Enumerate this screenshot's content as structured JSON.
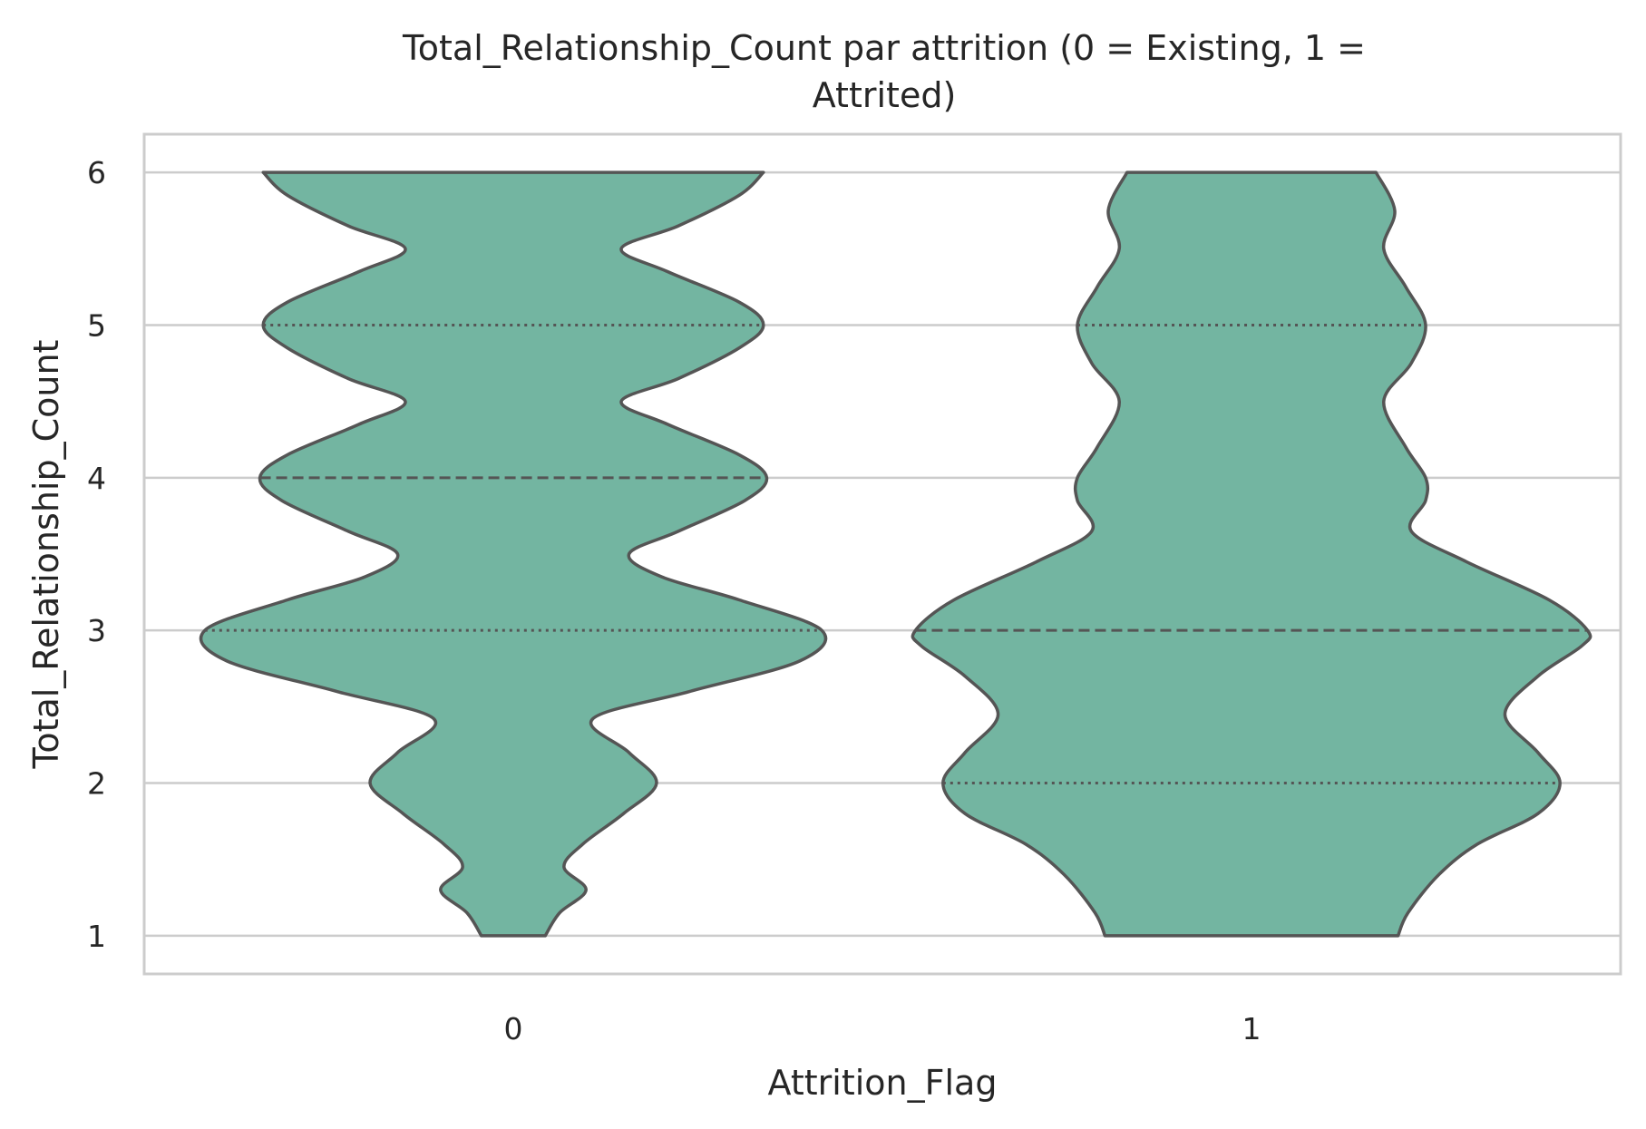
{
  "chart_data": {
    "type": "violin",
    "title_lines": [
      "Total_Relationship_Count par attrition (0 = Existing, 1 =",
      "Attrited)"
    ],
    "xlabel": "Attrition_Flag",
    "ylabel": "Total_Relationship_Count",
    "categories": [
      "0",
      "1"
    ],
    "y_ticks": [
      "1",
      "2",
      "3",
      "4",
      "5",
      "6"
    ],
    "ylim": [
      0.75,
      6.25
    ],
    "grid": true,
    "fill_color": "#73b5a1",
    "line_color": "#555555",
    "grid_color": "#cccccc",
    "violins": [
      {
        "category": "0",
        "density": [
          {
            "y": 1.0,
            "w": 0.29
          },
          {
            "y": 1.15,
            "w": 0.42
          },
          {
            "y": 1.3,
            "w": 0.66
          },
          {
            "y": 1.45,
            "w": 0.46
          },
          {
            "y": 1.6,
            "w": 0.63
          },
          {
            "y": 1.8,
            "w": 1.0
          },
          {
            "y": 2.0,
            "w": 1.3
          },
          {
            "y": 2.2,
            "w": 1.05
          },
          {
            "y": 2.42,
            "w": 0.72
          },
          {
            "y": 2.6,
            "w": 1.6
          },
          {
            "y": 2.8,
            "w": 2.6
          },
          {
            "y": 3.0,
            "w": 2.8
          },
          {
            "y": 3.2,
            "w": 2.05
          },
          {
            "y": 3.35,
            "w": 1.35
          },
          {
            "y": 3.5,
            "w": 1.05
          },
          {
            "y": 3.65,
            "w": 1.5
          },
          {
            "y": 3.85,
            "w": 2.1
          },
          {
            "y": 4.0,
            "w": 2.3
          },
          {
            "y": 4.15,
            "w": 2.05
          },
          {
            "y": 4.35,
            "w": 1.4
          },
          {
            "y": 4.5,
            "w": 0.98
          },
          {
            "y": 4.65,
            "w": 1.5
          },
          {
            "y": 4.85,
            "w": 2.05
          },
          {
            "y": 5.0,
            "w": 2.27
          },
          {
            "y": 5.15,
            "w": 2.05
          },
          {
            "y": 5.35,
            "w": 1.4
          },
          {
            "y": 5.5,
            "w": 0.98
          },
          {
            "y": 5.65,
            "w": 1.5
          },
          {
            "y": 5.85,
            "w": 2.05
          },
          {
            "y": 6.0,
            "w": 2.27
          }
        ],
        "quartiles": [
          {
            "y": 3.0,
            "style": "dotted"
          },
          {
            "y": 4.0,
            "style": "dashed"
          },
          {
            "y": 5.0,
            "style": "dotted"
          }
        ]
      },
      {
        "category": "1",
        "density": [
          {
            "y": 1.0,
            "w": 1.33
          },
          {
            "y": 1.15,
            "w": 1.42
          },
          {
            "y": 1.4,
            "w": 1.7
          },
          {
            "y": 1.6,
            "w": 2.05
          },
          {
            "y": 1.8,
            "w": 2.6
          },
          {
            "y": 2.0,
            "w": 2.8
          },
          {
            "y": 2.2,
            "w": 2.6
          },
          {
            "y": 2.45,
            "w": 2.3
          },
          {
            "y": 2.7,
            "w": 2.6
          },
          {
            "y": 2.9,
            "w": 3.0
          },
          {
            "y": 3.0,
            "w": 3.05
          },
          {
            "y": 3.2,
            "w": 2.7
          },
          {
            "y": 3.45,
            "w": 1.95
          },
          {
            "y": 3.65,
            "w": 1.45
          },
          {
            "y": 3.85,
            "w": 1.58
          },
          {
            "y": 4.0,
            "w": 1.58
          },
          {
            "y": 4.2,
            "w": 1.4
          },
          {
            "y": 4.5,
            "w": 1.2
          },
          {
            "y": 4.75,
            "w": 1.45
          },
          {
            "y": 5.0,
            "w": 1.58
          },
          {
            "y": 5.25,
            "w": 1.4
          },
          {
            "y": 5.5,
            "w": 1.2
          },
          {
            "y": 5.75,
            "w": 1.3
          },
          {
            "y": 6.0,
            "w": 1.13
          }
        ],
        "quartiles": [
          {
            "y": 2.0,
            "style": "dotted"
          },
          {
            "y": 3.0,
            "style": "dashed"
          },
          {
            "y": 5.0,
            "style": "dotted"
          }
        ]
      }
    ]
  }
}
